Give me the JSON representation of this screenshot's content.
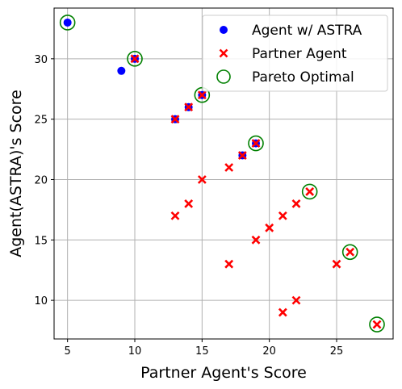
{
  "chart_data": {
    "type": "scatter",
    "xlabel": "Partner Agent's Score",
    "ylabel": "Agent(ASTRA)'s Score",
    "xlim": [
      4.0,
      29.2
    ],
    "ylim": [
      6.8,
      34.2
    ],
    "xticks": [
      5,
      10,
      15,
      20,
      25
    ],
    "yticks": [
      10,
      15,
      20,
      25,
      30
    ],
    "grid": true,
    "legend_position": "top-right",
    "series": [
      {
        "name": "Agent w/ ASTRA",
        "marker": "circle",
        "color": "#0000ff",
        "points": [
          [
            5,
            33
          ],
          [
            9,
            29
          ],
          [
            10,
            30
          ],
          [
            13,
            25
          ],
          [
            14,
            26
          ],
          [
            15,
            27
          ],
          [
            18,
            22
          ],
          [
            19,
            23
          ]
        ]
      },
      {
        "name": "Partner Agent",
        "marker": "x",
        "color": "#ff0000",
        "points": [
          [
            10,
            30
          ],
          [
            13,
            25
          ],
          [
            14,
            26
          ],
          [
            15,
            27
          ],
          [
            18,
            22
          ],
          [
            19,
            23
          ],
          [
            13,
            17
          ],
          [
            14,
            18
          ],
          [
            15,
            20
          ],
          [
            17,
            21
          ],
          [
            17,
            13
          ],
          [
            19,
            15
          ],
          [
            20,
            16
          ],
          [
            21,
            17
          ],
          [
            22,
            18
          ],
          [
            23,
            19
          ],
          [
            21,
            9
          ],
          [
            22,
            10
          ],
          [
            25,
            13
          ],
          [
            26,
            14
          ],
          [
            28,
            8
          ]
        ]
      },
      {
        "name": "Pareto Optimal",
        "marker": "open-circle",
        "color": "#008000",
        "points": [
          [
            5,
            33
          ],
          [
            10,
            30
          ],
          [
            15,
            27
          ],
          [
            19,
            23
          ],
          [
            23,
            19
          ],
          [
            26,
            14
          ],
          [
            28,
            8
          ]
        ]
      }
    ]
  }
}
